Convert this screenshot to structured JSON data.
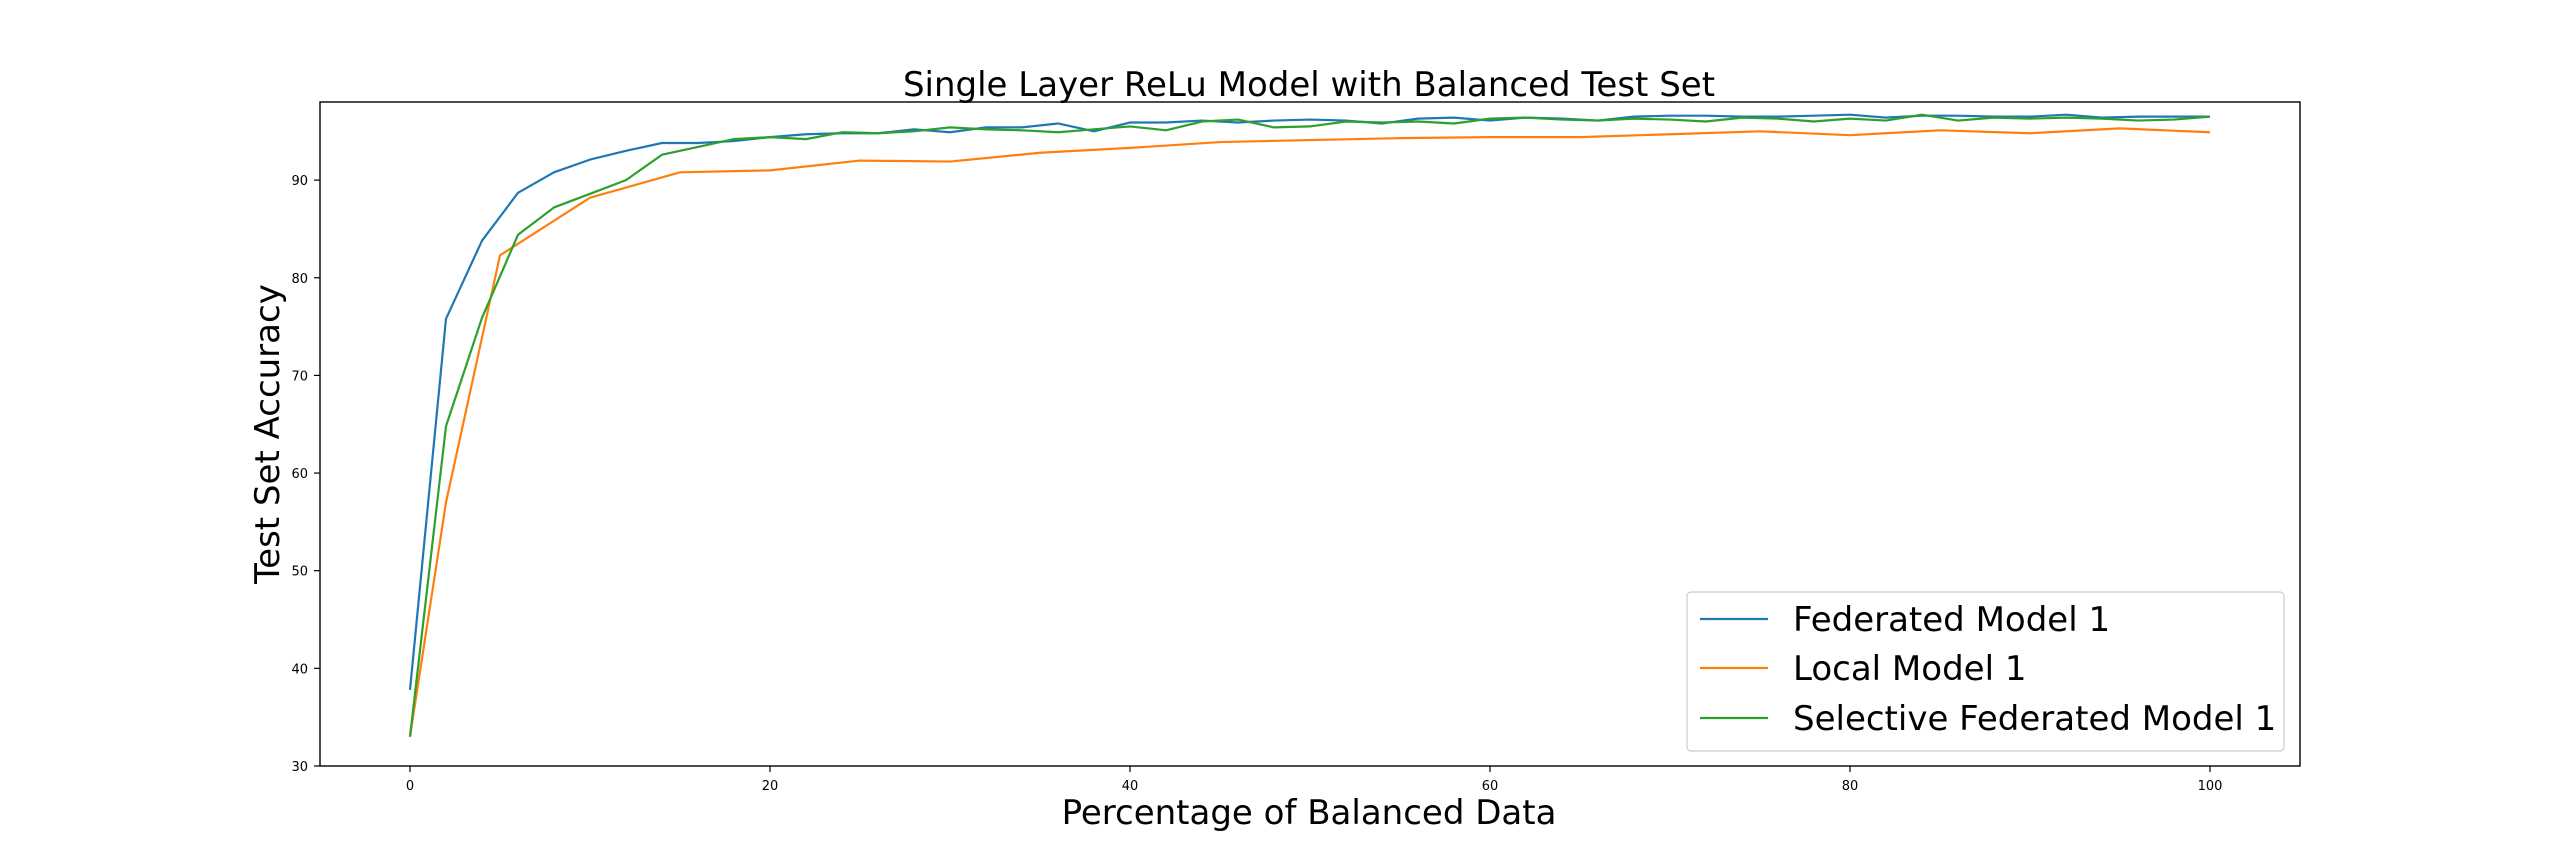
{
  "chart_data": {
    "type": "line",
    "title": "Single Layer ReLu Model with Balanced Test Set",
    "xlabel": "Percentage of Balanced Data",
    "ylabel": "Test Set Accuracy",
    "xlim": [
      -5,
      105
    ],
    "ylim": [
      30,
      98
    ],
    "xticks": [
      0,
      20,
      40,
      60,
      80,
      100
    ],
    "yticks": [
      30,
      40,
      50,
      60,
      70,
      80,
      90
    ],
    "grid": false,
    "legend_position": "lower-right",
    "series": [
      {
        "name": "Federated Model 1",
        "color": "#1f77b4",
        "x": [
          0,
          2,
          4,
          6,
          8,
          10,
          12,
          14,
          16,
          18,
          20,
          22,
          24,
          26,
          28,
          30,
          32,
          34,
          36,
          38,
          40,
          42,
          44,
          46,
          48,
          50,
          52,
          54,
          56,
          58,
          60,
          62,
          64,
          66,
          68,
          70,
          72,
          74,
          76,
          78,
          80,
          82,
          84,
          86,
          88,
          90,
          92,
          94,
          96,
          98,
          100
        ],
        "y": [
          37.8,
          75.8,
          83.8,
          88.7,
          90.8,
          92.1,
          93.0,
          93.8,
          93.8,
          94.0,
          94.4,
          94.7,
          94.8,
          94.8,
          95.2,
          94.9,
          95.4,
          95.4,
          95.8,
          95.0,
          95.9,
          95.9,
          96.1,
          95.9,
          96.1,
          96.2,
          96.1,
          95.8,
          96.3,
          96.4,
          96.1,
          96.4,
          96.3,
          96.1,
          96.5,
          96.6,
          96.6,
          96.5,
          96.5,
          96.6,
          96.7,
          96.4,
          96.6,
          96.6,
          96.5,
          96.5,
          96.7,
          96.4,
          96.5,
          96.5,
          96.5
        ]
      },
      {
        "name": "Local Model 1",
        "color": "#ff7f0e",
        "x": [
          0,
          2,
          5,
          10,
          15,
          20,
          25,
          30,
          35,
          40,
          45,
          50,
          55,
          60,
          65,
          70,
          75,
          80,
          85,
          90,
          95,
          100
        ],
        "y": [
          33.0,
          57.0,
          82.3,
          88.2,
          90.8,
          91.0,
          92.0,
          91.9,
          92.8,
          93.3,
          93.9,
          94.1,
          94.3,
          94.4,
          94.4,
          94.7,
          95.0,
          94.6,
          95.1,
          94.8,
          95.3,
          94.9
        ]
      },
      {
        "name": "Selective Federated Model 1",
        "color": "#2ca02c",
        "x": [
          0,
          2,
          4,
          6,
          8,
          10,
          12,
          14,
          16,
          18,
          20,
          22,
          24,
          26,
          28,
          30,
          32,
          34,
          36,
          38,
          40,
          42,
          44,
          46,
          48,
          50,
          52,
          54,
          56,
          58,
          60,
          62,
          64,
          66,
          68,
          70,
          72,
          74,
          76,
          78,
          80,
          82,
          84,
          86,
          88,
          90,
          92,
          94,
          96,
          98,
          100
        ],
        "y": [
          33.0,
          64.8,
          75.9,
          84.4,
          87.2,
          88.6,
          90.0,
          92.6,
          93.4,
          94.2,
          94.4,
          94.2,
          94.9,
          94.8,
          95.0,
          95.4,
          95.2,
          95.1,
          94.9,
          95.2,
          95.5,
          95.1,
          96.0,
          96.2,
          95.4,
          95.5,
          96.0,
          95.9,
          96.0,
          95.8,
          96.3,
          96.4,
          96.2,
          96.1,
          96.3,
          96.2,
          96.0,
          96.4,
          96.3,
          96.0,
          96.3,
          96.1,
          96.7,
          96.1,
          96.4,
          96.3,
          96.4,
          96.3,
          96.1,
          96.2,
          96.5
        ]
      }
    ]
  }
}
